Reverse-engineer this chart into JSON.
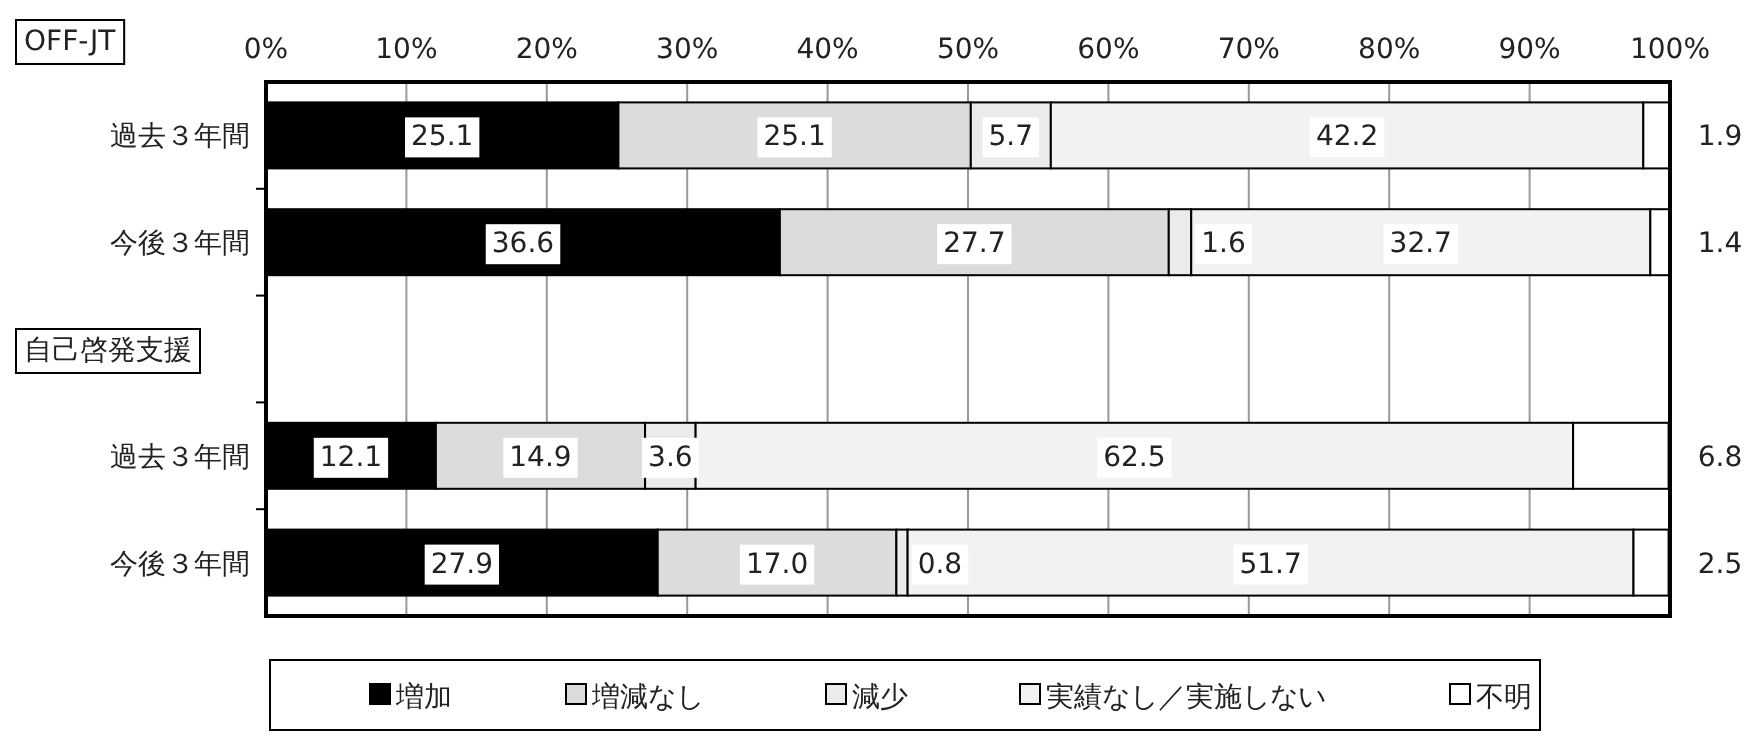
{
  "chart_data": {
    "type": "bar",
    "orientation": "horizontal",
    "stacked": true,
    "categories": [
      "過去３年間",
      "今後３年間",
      null,
      "過去３年間",
      "今後３年間"
    ],
    "series": [
      {
        "name": "増加",
        "color": "#000000",
        "values": [
          25.1,
          36.6,
          null,
          12.1,
          27.9
        ],
        "value_labels": [
          "25.1",
          "36.6",
          null,
          "12.1",
          "27.9"
        ]
      },
      {
        "name": "増減なし",
        "color": "#dcdcdc",
        "values": [
          25.1,
          27.7,
          null,
          14.9,
          17.0
        ],
        "value_labels": [
          "25.1",
          "27.7",
          null,
          "14.9",
          "17.0"
        ]
      },
      {
        "name": "減少",
        "color": "#ebebeb",
        "values": [
          5.7,
          1.6,
          null,
          3.6,
          0.8
        ],
        "value_labels": [
          "5.7",
          "1.6",
          null,
          "3.6",
          "0.8"
        ]
      },
      {
        "name": "実績なし／実施しない",
        "color": "#f2f2f2",
        "values": [
          42.2,
          32.7,
          null,
          62.5,
          51.7
        ],
        "value_labels": [
          "42.2",
          "32.7",
          null,
          "62.5",
          "51.7"
        ]
      },
      {
        "name": "不明",
        "color": "#ffffff",
        "values": [
          1.9,
          1.4,
          null,
          6.8,
          2.5
        ],
        "value_labels": [
          "1.9",
          "1.4",
          null,
          "6.8",
          "2.5"
        ]
      }
    ],
    "xlim": [
      0,
      100
    ],
    "xticks": [
      {
        "value": 0,
        "label": "0%"
      },
      {
        "value": 10,
        "label": "10%"
      },
      {
        "value": 20,
        "label": "20%"
      },
      {
        "value": 30,
        "label": "30%"
      },
      {
        "value": 40,
        "label": "40%"
      },
      {
        "value": 50,
        "label": "50%"
      },
      {
        "value": 60,
        "label": "60%"
      },
      {
        "value": 70,
        "label": "70%"
      },
      {
        "value": 80,
        "label": "80%"
      },
      {
        "value": 90,
        "label": "90%"
      },
      {
        "value": 100,
        "label": "100%"
      }
    ],
    "grid": "x",
    "legend": "bottom",
    "annotations": [
      "OFF-JT",
      "自己啓発支援"
    ]
  }
}
